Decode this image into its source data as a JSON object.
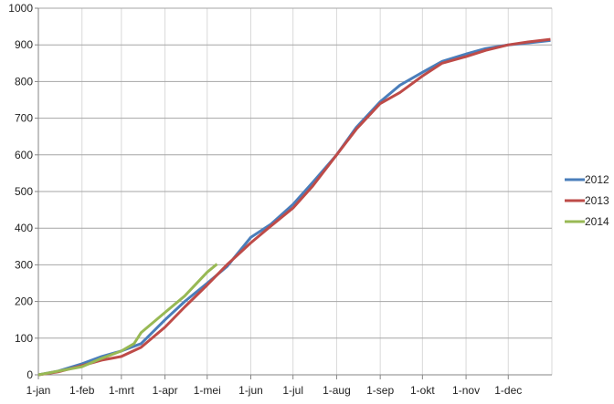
{
  "chart_data": {
    "type": "line",
    "title": "",
    "xlabel": "",
    "ylabel": "",
    "ylim": [
      0,
      1000
    ],
    "yticks": [
      0,
      100,
      200,
      300,
      400,
      500,
      600,
      700,
      800,
      900,
      1000
    ],
    "xticks": [
      "1-jan",
      "1-feb",
      "1-mrt",
      "1-apr",
      "1-mei",
      "1-jun",
      "1-jul",
      "1-aug",
      "1-sep",
      "1-okt",
      "1-nov",
      "1-dec"
    ],
    "xtick_days": [
      0,
      31,
      59,
      90,
      120,
      151,
      181,
      212,
      243,
      273,
      304,
      334
    ],
    "xlim_days": [
      0,
      365
    ],
    "grid": true,
    "legend": "right",
    "series": [
      {
        "name": "2012",
        "color": "#4a7ebb",
        "points": [
          [
            "1-jan",
            0
          ],
          [
            "15-jan",
            10
          ],
          [
            "1-feb",
            30
          ],
          [
            "15-feb",
            50
          ],
          [
            "1-mrt",
            65
          ],
          [
            "15-mrt",
            85
          ],
          [
            "1-apr",
            150
          ],
          [
            "15-apr",
            200
          ],
          [
            "1-mei",
            250
          ],
          [
            "15-mei",
            295
          ],
          [
            "1-jun",
            375
          ],
          [
            "15-jun",
            410
          ],
          [
            "1-jul",
            465
          ],
          [
            "15-jul",
            525
          ],
          [
            "1-aug",
            600
          ],
          [
            "15-aug",
            675
          ],
          [
            "1-sep",
            745
          ],
          [
            "15-sep",
            790
          ],
          [
            "1-okt",
            825
          ],
          [
            "15-okt",
            855
          ],
          [
            "1-nov",
            875
          ],
          [
            "15-nov",
            890
          ],
          [
            "1-dec",
            900
          ],
          [
            "15-dec",
            905
          ],
          [
            "31-dec",
            912
          ]
        ]
      },
      {
        "name": "2013",
        "color": "#be4b48",
        "points": [
          [
            "1-jan",
            0
          ],
          [
            "15-jan",
            8
          ],
          [
            "1-feb",
            25
          ],
          [
            "15-feb",
            40
          ],
          [
            "1-mrt",
            50
          ],
          [
            "15-mrt",
            75
          ],
          [
            "1-apr",
            130
          ],
          [
            "15-apr",
            185
          ],
          [
            "1-mei",
            245
          ],
          [
            "15-mei",
            300
          ],
          [
            "1-jun",
            360
          ],
          [
            "15-jun",
            405
          ],
          [
            "1-jul",
            455
          ],
          [
            "15-jul",
            515
          ],
          [
            "1-aug",
            600
          ],
          [
            "15-aug",
            670
          ],
          [
            "1-sep",
            740
          ],
          [
            "15-sep",
            770
          ],
          [
            "1-okt",
            815
          ],
          [
            "15-okt",
            850
          ],
          [
            "1-nov",
            868
          ],
          [
            "15-nov",
            885
          ],
          [
            "1-dec",
            900
          ],
          [
            "15-dec",
            908
          ],
          [
            "31-dec",
            915
          ]
        ]
      },
      {
        "name": "2014",
        "color": "#98b954",
        "points": [
          [
            "1-jan",
            0
          ],
          [
            "15-jan",
            10
          ],
          [
            "1-feb",
            22
          ],
          [
            "15-feb",
            45
          ],
          [
            "1-mrt",
            65
          ],
          [
            "10-mrt",
            85
          ],
          [
            "15-mrt",
            115
          ],
          [
            "1-apr",
            170
          ],
          [
            "15-apr",
            215
          ],
          [
            "1-mei",
            280
          ],
          [
            "8-mei",
            302
          ]
        ]
      }
    ]
  }
}
